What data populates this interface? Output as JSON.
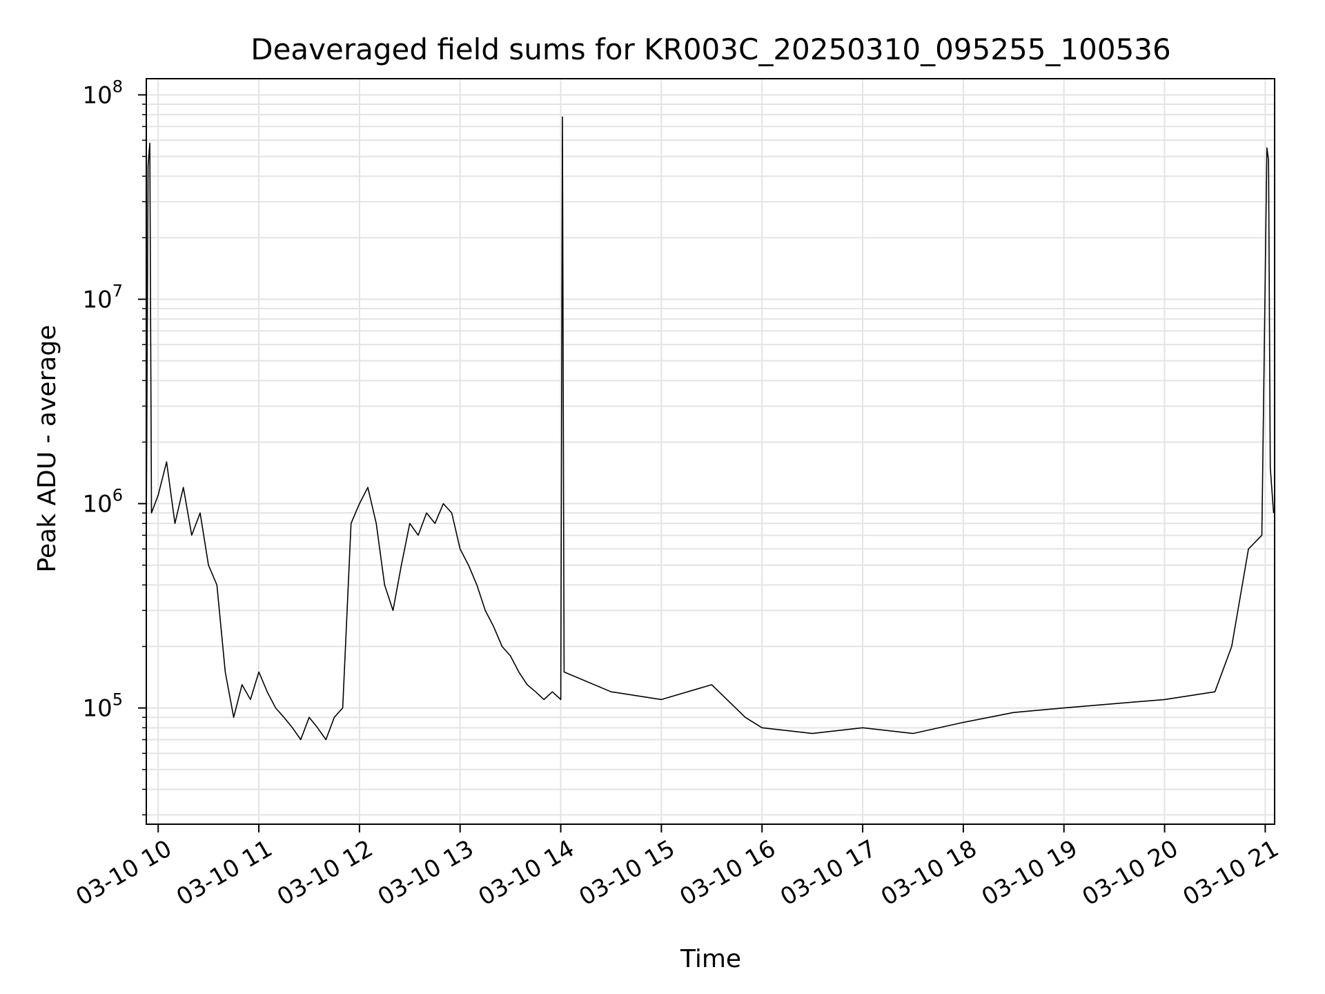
{
  "chart_data": {
    "type": "line",
    "title": "Deaveraged field sums for KR003C_20250310_095255_100536",
    "xlabel": "Time",
    "ylabel": "Peak ADU - average",
    "y_scale": "log",
    "ylim": [
      27000,
      120000000
    ],
    "xlim": [
      "2025-03-10 09:52:55",
      "2025-03-10 21:05:36"
    ],
    "grid": true,
    "line_color": "#000000",
    "x_ticks": [
      {
        "t": "2025-03-10 10:00",
        "label": "03-10 10"
      },
      {
        "t": "2025-03-10 11:00",
        "label": "03-10 11"
      },
      {
        "t": "2025-03-10 12:00",
        "label": "03-10 12"
      },
      {
        "t": "2025-03-10 13:00",
        "label": "03-10 13"
      },
      {
        "t": "2025-03-10 14:00",
        "label": "03-10 14"
      },
      {
        "t": "2025-03-10 15:00",
        "label": "03-10 15"
      },
      {
        "t": "2025-03-10 16:00",
        "label": "03-10 16"
      },
      {
        "t": "2025-03-10 17:00",
        "label": "03-10 17"
      },
      {
        "t": "2025-03-10 18:00",
        "label": "03-10 18"
      },
      {
        "t": "2025-03-10 19:00",
        "label": "03-10 19"
      },
      {
        "t": "2025-03-10 20:00",
        "label": "03-10 20"
      },
      {
        "t": "2025-03-10 21:00",
        "label": "03-10 21"
      }
    ],
    "y_ticks": [
      {
        "value": 100000,
        "base": "10",
        "exp": "5"
      },
      {
        "value": 1000000,
        "base": "10",
        "exp": "6"
      },
      {
        "value": 10000000,
        "base": "10",
        "exp": "7"
      },
      {
        "value": 100000000,
        "base": "10",
        "exp": "8"
      }
    ],
    "series": [
      {
        "points": [
          [
            "2025-03-10 09:53",
            1000000
          ],
          [
            "2025-03-10 09:54",
            45000000
          ],
          [
            "2025-03-10 09:55",
            58000000
          ],
          [
            "2025-03-10 09:56",
            900000
          ],
          [
            "2025-03-10 10:00",
            1100000
          ],
          [
            "2025-03-10 10:05",
            1600000
          ],
          [
            "2025-03-10 10:10",
            800000
          ],
          [
            "2025-03-10 10:15",
            1200000
          ],
          [
            "2025-03-10 10:20",
            700000
          ],
          [
            "2025-03-10 10:25",
            900000
          ],
          [
            "2025-03-10 10:30",
            500000
          ],
          [
            "2025-03-10 10:35",
            400000
          ],
          [
            "2025-03-10 10:40",
            150000
          ],
          [
            "2025-03-10 10:45",
            90000
          ],
          [
            "2025-03-10 10:50",
            130000
          ],
          [
            "2025-03-10 10:55",
            110000
          ],
          [
            "2025-03-10 11:00",
            150000
          ],
          [
            "2025-03-10 11:05",
            120000
          ],
          [
            "2025-03-10 11:10",
            100000
          ],
          [
            "2025-03-10 11:15",
            90000
          ],
          [
            "2025-03-10 11:20",
            80000
          ],
          [
            "2025-03-10 11:25",
            70000
          ],
          [
            "2025-03-10 11:30",
            90000
          ],
          [
            "2025-03-10 11:35",
            80000
          ],
          [
            "2025-03-10 11:40",
            70000
          ],
          [
            "2025-03-10 11:45",
            90000
          ],
          [
            "2025-03-10 11:50",
            100000
          ],
          [
            "2025-03-10 11:55",
            800000
          ],
          [
            "2025-03-10 12:00",
            1000000
          ],
          [
            "2025-03-10 12:05",
            1200000
          ],
          [
            "2025-03-10 12:10",
            800000
          ],
          [
            "2025-03-10 12:15",
            400000
          ],
          [
            "2025-03-10 12:20",
            300000
          ],
          [
            "2025-03-10 12:25",
            500000
          ],
          [
            "2025-03-10 12:30",
            800000
          ],
          [
            "2025-03-10 12:35",
            700000
          ],
          [
            "2025-03-10 12:40",
            900000
          ],
          [
            "2025-03-10 12:45",
            800000
          ],
          [
            "2025-03-10 12:50",
            1000000
          ],
          [
            "2025-03-10 12:55",
            900000
          ],
          [
            "2025-03-10 13:00",
            600000
          ],
          [
            "2025-03-10 13:05",
            500000
          ],
          [
            "2025-03-10 13:10",
            400000
          ],
          [
            "2025-03-10 13:15",
            300000
          ],
          [
            "2025-03-10 13:20",
            250000
          ],
          [
            "2025-03-10 13:25",
            200000
          ],
          [
            "2025-03-10 13:30",
            180000
          ],
          [
            "2025-03-10 13:35",
            150000
          ],
          [
            "2025-03-10 13:40",
            130000
          ],
          [
            "2025-03-10 13:45",
            120000
          ],
          [
            "2025-03-10 13:50",
            110000
          ],
          [
            "2025-03-10 13:55",
            120000
          ],
          [
            "2025-03-10 14:00",
            110000
          ],
          [
            "2025-03-10 14:01",
            78000000
          ],
          [
            "2025-03-10 14:02",
            150000
          ],
          [
            "2025-03-10 14:30",
            120000
          ],
          [
            "2025-03-10 15:00",
            110000
          ],
          [
            "2025-03-10 15:30",
            130000
          ],
          [
            "2025-03-10 15:50",
            90000
          ],
          [
            "2025-03-10 16:00",
            80000
          ],
          [
            "2025-03-10 16:30",
            75000
          ],
          [
            "2025-03-10 17:00",
            80000
          ],
          [
            "2025-03-10 17:30",
            75000
          ],
          [
            "2025-03-10 18:00",
            85000
          ],
          [
            "2025-03-10 18:30",
            95000
          ],
          [
            "2025-03-10 19:00",
            100000
          ],
          [
            "2025-03-10 19:30",
            105000
          ],
          [
            "2025-03-10 20:00",
            110000
          ],
          [
            "2025-03-10 20:30",
            120000
          ],
          [
            "2025-03-10 20:40",
            200000
          ],
          [
            "2025-03-10 20:50",
            600000
          ],
          [
            "2025-03-10 20:58",
            700000
          ],
          [
            "2025-03-10 21:01",
            55000000
          ],
          [
            "2025-03-10 21:02",
            48000000
          ],
          [
            "2025-03-10 21:03",
            1500000
          ],
          [
            "2025-03-10 21:05",
            900000
          ]
        ]
      }
    ]
  }
}
